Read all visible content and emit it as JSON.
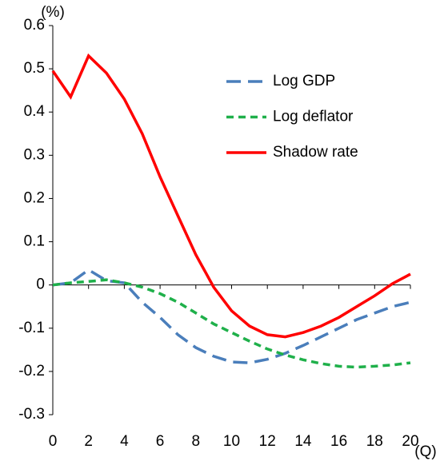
{
  "chart_data": {
    "type": "line",
    "y_unit": "(%)",
    "x_unit": "(Q)",
    "x": [
      0,
      1,
      2,
      3,
      4,
      5,
      6,
      7,
      8,
      9,
      10,
      11,
      12,
      13,
      14,
      15,
      16,
      17,
      18,
      19,
      20
    ],
    "xlim": [
      0,
      20
    ],
    "xticks": [
      0,
      2,
      4,
      6,
      8,
      10,
      12,
      14,
      16,
      18,
      20
    ],
    "ylim": [
      -0.3,
      0.6
    ],
    "yticks": [
      -0.3,
      -0.2,
      -0.1,
      0,
      0.1,
      0.2,
      0.3,
      0.4,
      0.5,
      0.6
    ],
    "legend": "upper right",
    "series": [
      {
        "name": "Log GDP",
        "color": "#4a7ebb",
        "dash": "long",
        "values": [
          0,
          0.005,
          0.035,
          0.01,
          0.005,
          -0.04,
          -0.075,
          -0.115,
          -0.145,
          -0.165,
          -0.178,
          -0.18,
          -0.172,
          -0.158,
          -0.14,
          -0.12,
          -0.1,
          -0.08,
          -0.065,
          -0.05,
          -0.04
        ]
      },
      {
        "name": "Log deflator",
        "color": "#1fb04a",
        "dash": "short",
        "values": [
          0,
          0.005,
          0.008,
          0.012,
          0.005,
          -0.005,
          -0.02,
          -0.04,
          -0.065,
          -0.09,
          -0.11,
          -0.13,
          -0.148,
          -0.162,
          -0.173,
          -0.182,
          -0.188,
          -0.19,
          -0.188,
          -0.185,
          -0.18
        ]
      },
      {
        "name": "Shadow rate",
        "color": "#ff0000",
        "dash": "solid",
        "values": [
          0.495,
          0.435,
          0.53,
          0.49,
          0.43,
          0.35,
          0.25,
          0.16,
          0.07,
          -0.005,
          -0.06,
          -0.095,
          -0.115,
          -0.12,
          -0.11,
          -0.095,
          -0.075,
          -0.05,
          -0.025,
          0.003,
          0.025
        ]
      }
    ]
  }
}
